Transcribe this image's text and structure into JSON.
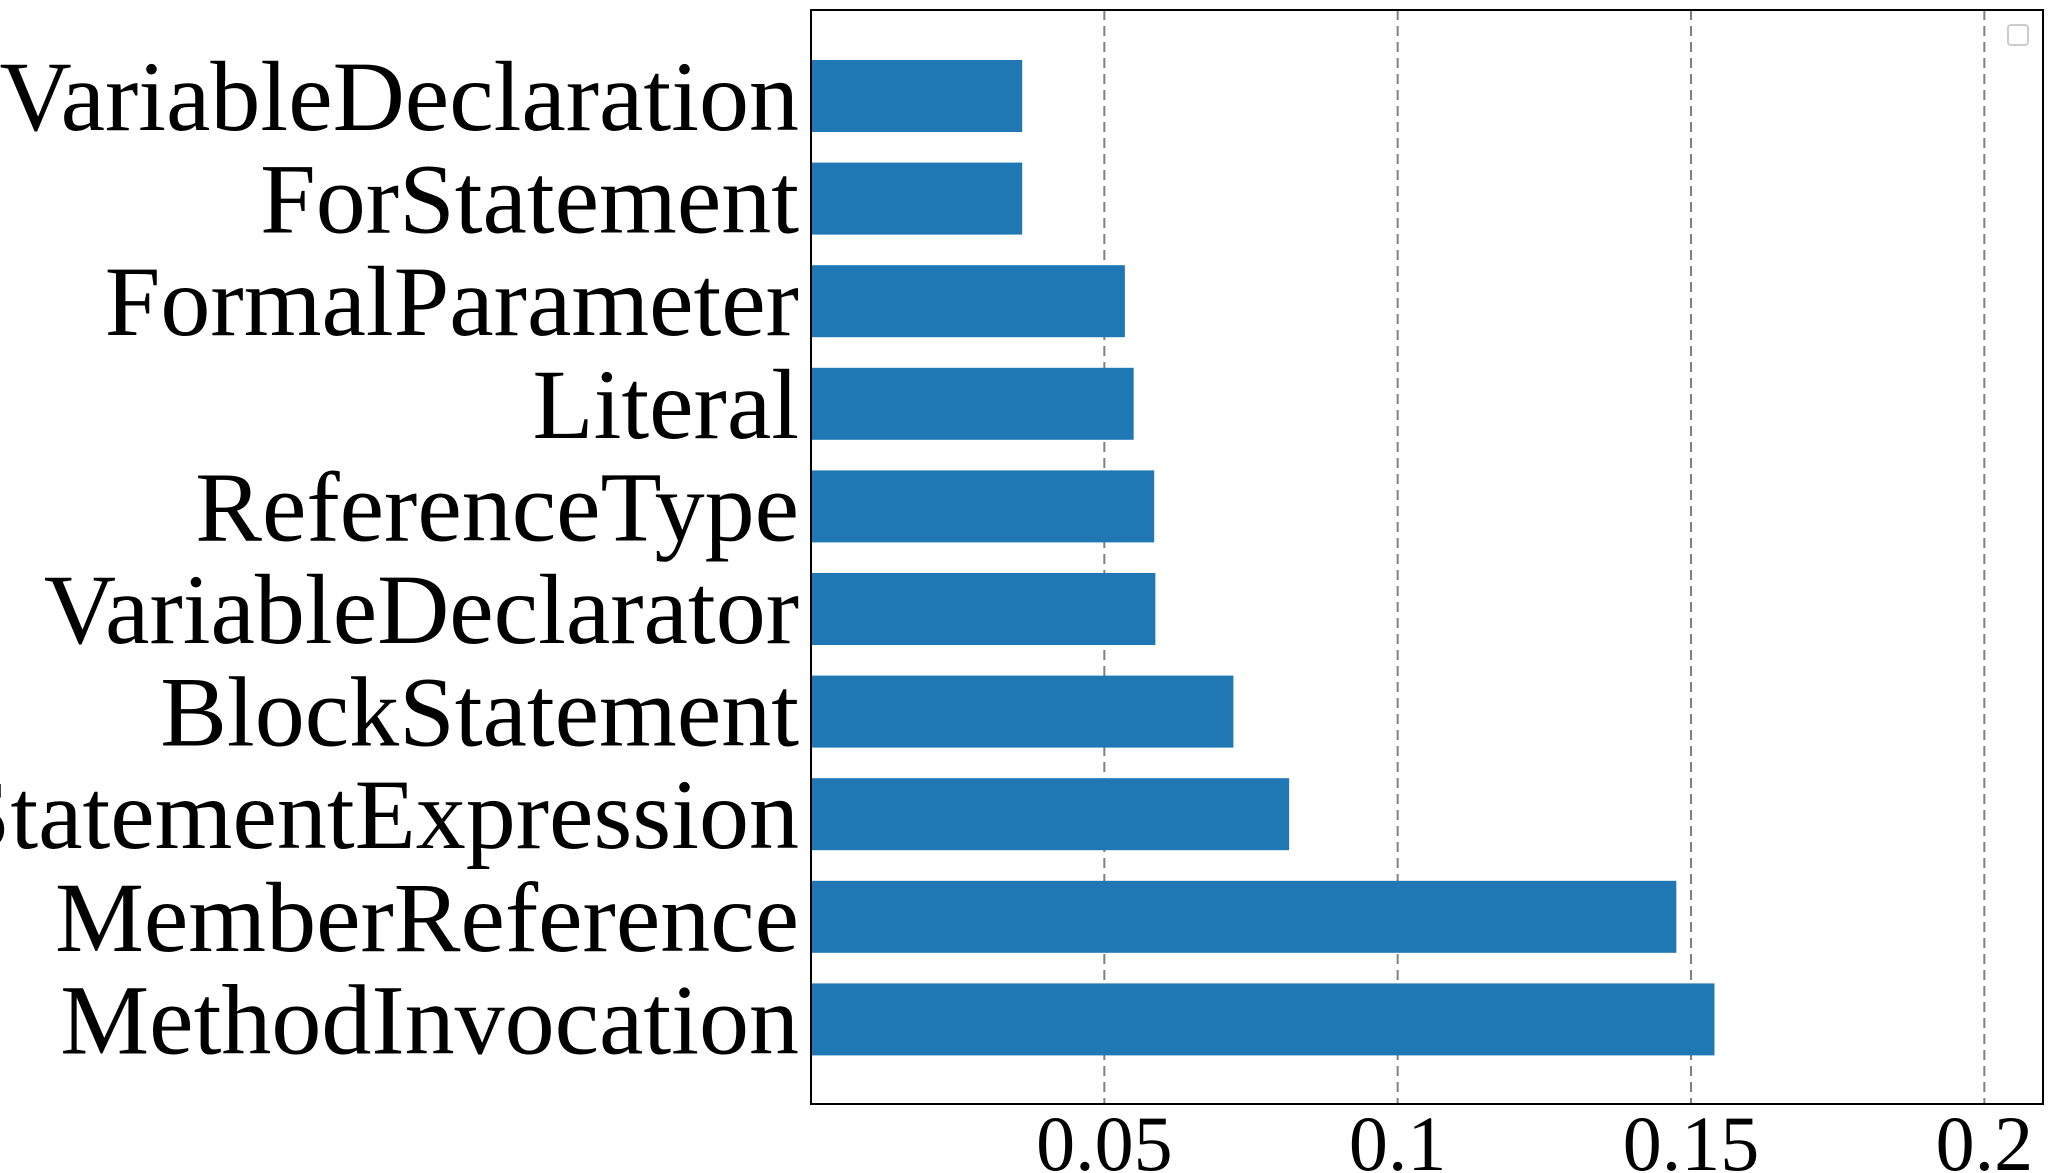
{
  "chart_data": {
    "type": "bar",
    "orientation": "horizontal",
    "categories": [
      "VariableDeclaration",
      "ForStatement",
      "FormalParameter",
      "Literal",
      "ReferenceType",
      "VariableDeclarator",
      "BlockStatement",
      "StatementExpression",
      "MemberReference",
      "MethodInvocation"
    ],
    "values": [
      0.036,
      0.036,
      0.0535,
      0.055,
      0.0585,
      0.0587,
      0.072,
      0.0815,
      0.1475,
      0.154
    ],
    "xticks": [
      0.05,
      0.1,
      0.15,
      0.2
    ],
    "xtick_labels": [
      "0.05",
      "0.1",
      "0.15",
      "0.2"
    ],
    "xlim": [
      0,
      0.21
    ],
    "title": "",
    "xlabel": "",
    "ylabel": "",
    "grid": "x-axis dashed",
    "legend": "top-right (empty)",
    "bar_color": "#1f77b4",
    "grid_color": "#808080"
  }
}
